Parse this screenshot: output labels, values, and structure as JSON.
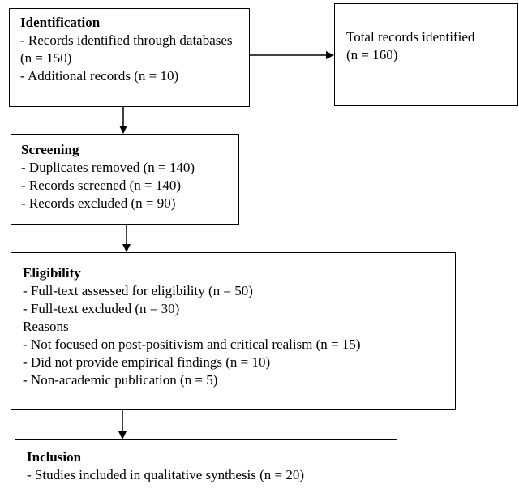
{
  "identification": {
    "title": "Identification",
    "line1": "- Records identified through databases (n = 150)",
    "line2": "- Additional records (n = 10)"
  },
  "total": {
    "label": "Total records identified",
    "count": "(n = 160)"
  },
  "screening": {
    "title": "Screening",
    "lines": [
      "- Duplicates removed (n = 140)",
      "- Records screened (n = 140)",
      "- Records excluded (n = 90)"
    ]
  },
  "eligibility": {
    "title": "Eligibility",
    "lines": [
      "- Full-text assessed for eligibility (n = 50)",
      "- Full-text excluded (n = 30)",
      "Reasons",
      "- Not focused on post-positivism and critical realism (n = 15)",
      "- Did not provide empirical findings (n = 10)",
      "- Non-academic publication (n = 5)"
    ]
  },
  "inclusion": {
    "title": "Inclusion",
    "line1": "- Studies included in qualitative synthesis (n = 20)"
  }
}
